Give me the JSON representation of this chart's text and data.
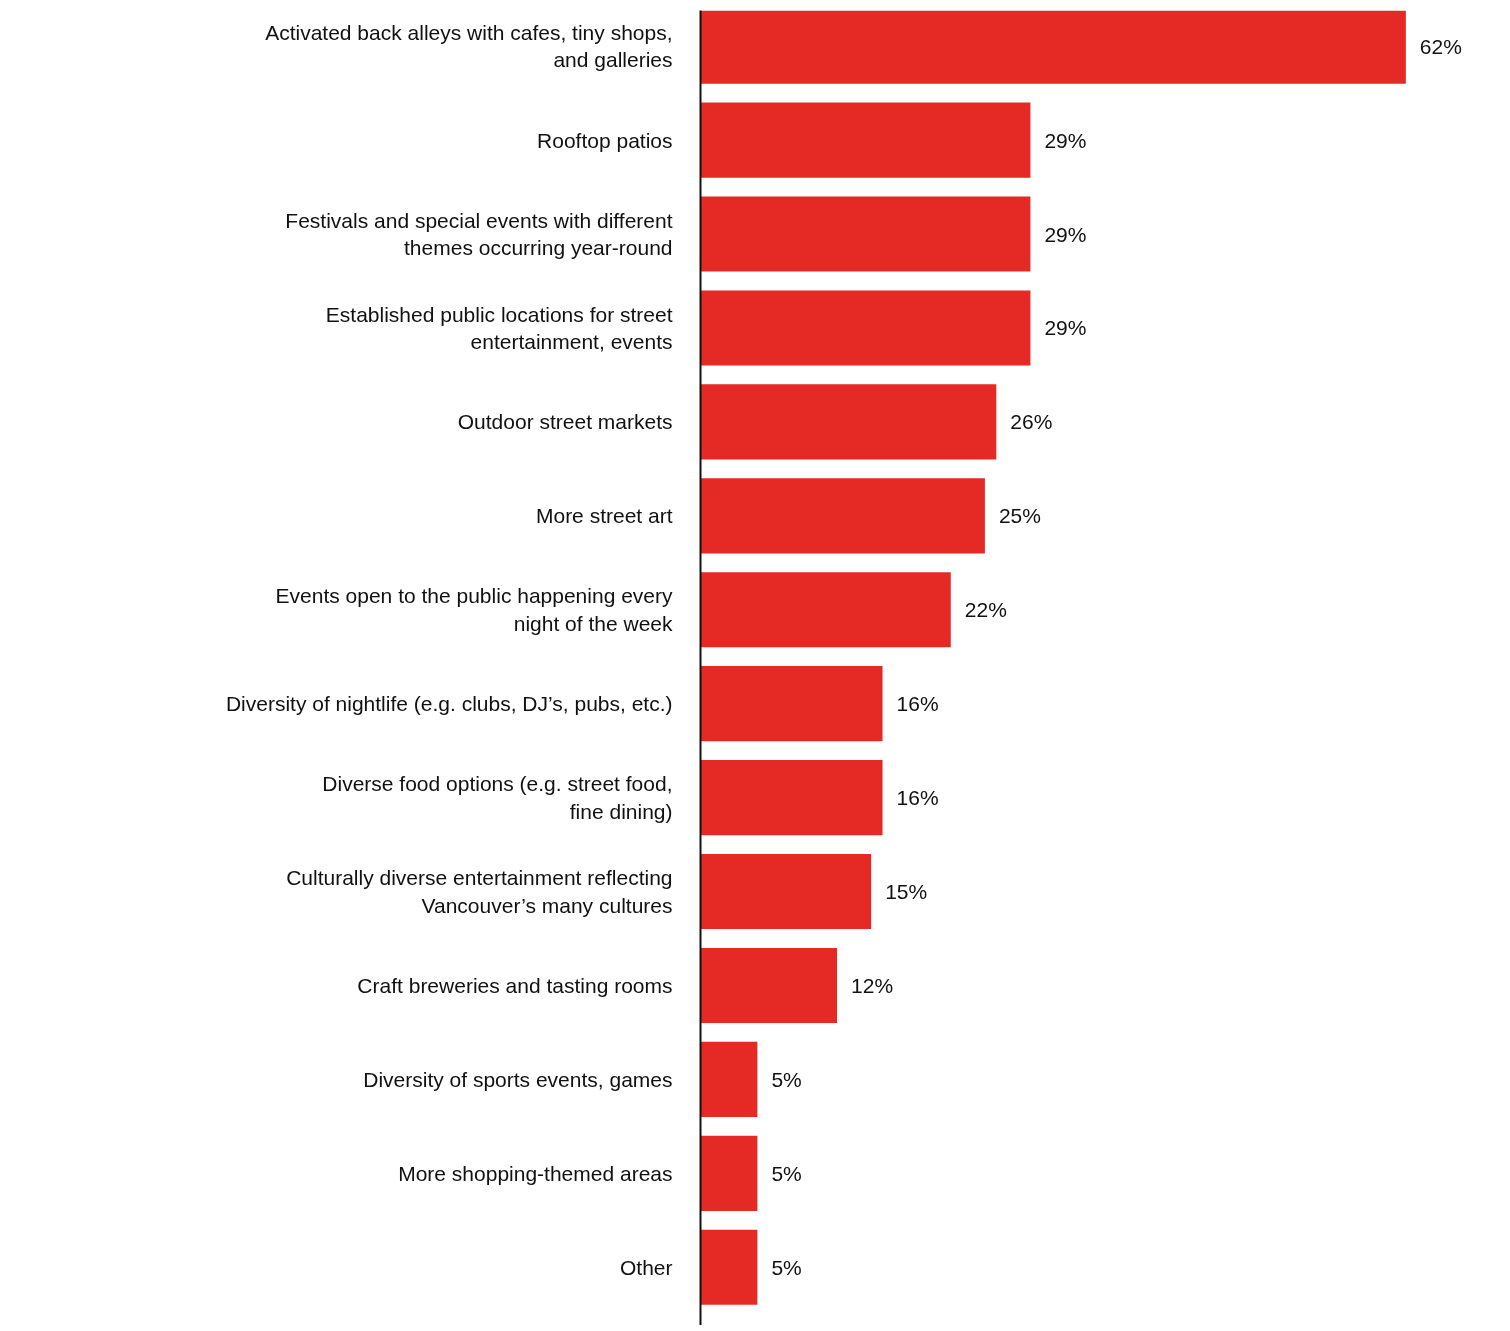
{
  "chart_data": {
    "type": "bar",
    "orientation": "horizontal",
    "grid": false,
    "color": "#e52a25",
    "categories": [
      "Activated back alleys with cafes, tiny shops,\nand galleries",
      "Rooftop patios",
      "Festivals and special events with different\nthemes occurring year-round",
      "Established public locations for street\nentertainment, events",
      "Outdoor street markets",
      "More street art",
      "Events open to the public happening every\nnight of the week",
      "Diversity of nightlife (e.g. clubs, DJ’s, pubs, etc.)",
      "Diverse food options (e.g. street food,\nfine dining)",
      "Culturally diverse entertainment reflecting\nVancouver’s many cultures",
      "Craft breweries and tasting rooms",
      "Diversity of sports events, games",
      "More shopping-themed areas",
      "Other"
    ],
    "values": [
      62,
      29,
      29,
      29,
      26,
      25,
      22,
      16,
      16,
      15,
      12,
      5,
      5,
      5
    ],
    "value_labels": [
      "62%",
      "29%",
      "29%",
      "29%",
      "26%",
      "25%",
      "22%",
      "16%",
      "16%",
      "15%",
      "12%",
      "5%",
      "5%",
      "5%"
    ]
  }
}
